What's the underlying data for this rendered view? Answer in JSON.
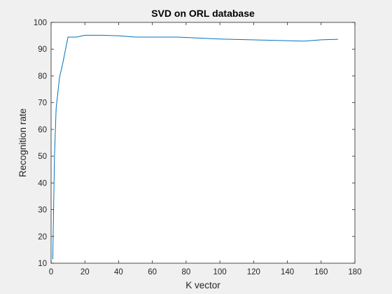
{
  "chart_data": {
    "type": "line",
    "title": "SVD on ORL database",
    "xlabel": "K vector",
    "ylabel": "Recognition rate",
    "xlim": [
      0,
      180
    ],
    "ylim": [
      10,
      100
    ],
    "xticks": [
      0,
      20,
      40,
      60,
      80,
      100,
      120,
      140,
      160,
      180
    ],
    "yticks": [
      10,
      20,
      30,
      40,
      50,
      60,
      70,
      80,
      90,
      100
    ],
    "grid": false,
    "legend": "none",
    "series": [
      {
        "color": "#0072bd",
        "x": [
          1,
          2,
          3,
          5,
          7,
          10,
          15,
          20,
          30,
          40,
          50,
          60,
          75,
          100,
          125,
          150,
          160,
          170
        ],
        "y": [
          11.5,
          50,
          68,
          79.5,
          85,
          94.5,
          94.5,
          95.2,
          95.2,
          95,
          94.5,
          94.5,
          94.5,
          93.8,
          93.4,
          93,
          93.5,
          93.7
        ]
      }
    ]
  }
}
